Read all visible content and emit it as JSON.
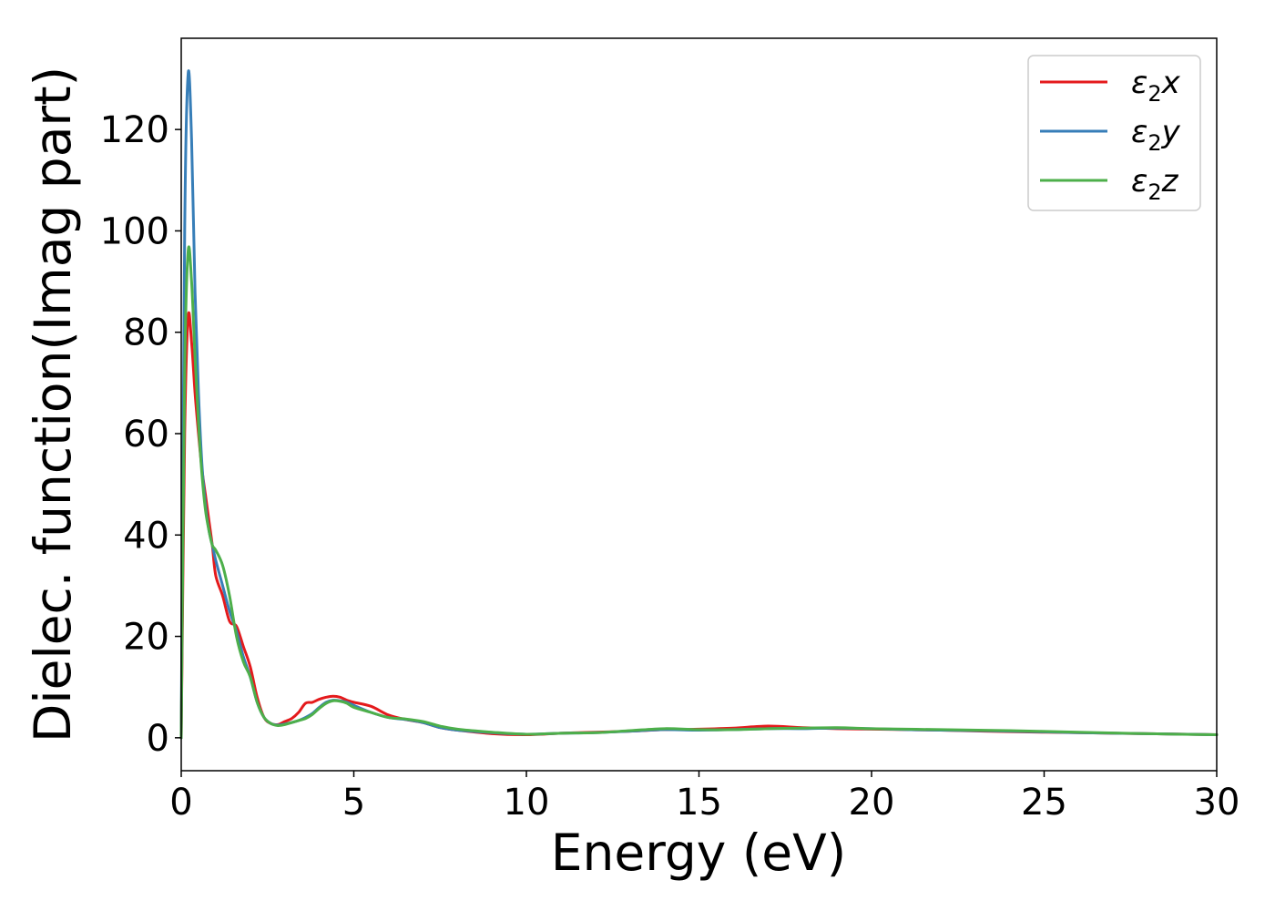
{
  "chart_data": {
    "type": "line",
    "title": "",
    "xlabel": "Energy (eV)",
    "ylabel": "Dielec. function(Imag part)",
    "xlim": [
      0,
      30
    ],
    "ylim": [
      -6.5,
      138
    ],
    "xticks": [
      0,
      5,
      10,
      15,
      20,
      25,
      30
    ],
    "yticks": [
      0,
      20,
      40,
      60,
      80,
      100,
      120
    ],
    "grid": false,
    "legend_position": "top-right",
    "series": [
      {
        "name": "ε2x",
        "legend_main": "ε",
        "legend_sub": "2",
        "legend_suffix": "x",
        "color": "#e41a1c",
        "x": [
          0,
          0.1,
          0.2,
          0.3,
          0.4,
          0.5,
          0.6,
          0.7,
          0.8,
          0.9,
          1.0,
          1.2,
          1.4,
          1.6,
          1.8,
          2.0,
          2.2,
          2.4,
          2.6,
          2.8,
          3.0,
          3.2,
          3.4,
          3.6,
          3.8,
          4.0,
          4.2,
          4.4,
          4.6,
          4.8,
          5.0,
          5.5,
          6.0,
          6.5,
          7.0,
          7.5,
          8.0,
          9.0,
          10.0,
          11.0,
          12.0,
          13.0,
          14.0,
          15.0,
          16.0,
          17.0,
          18.0,
          19.0,
          20.0,
          21.0,
          22.0,
          24.0,
          26.0,
          28.0,
          30.0
        ],
        "y": [
          0,
          60,
          83,
          78,
          68,
          60,
          53,
          48,
          43,
          38,
          32,
          28,
          23,
          22,
          18,
          14,
          8,
          4,
          2.8,
          2.6,
          3.2,
          3.8,
          5.0,
          6.8,
          7.0,
          7.6,
          8.0,
          8.2,
          8.0,
          7.4,
          7.0,
          6.2,
          4.5,
          3.6,
          3.0,
          2.0,
          1.5,
          0.8,
          0.6,
          0.9,
          1.1,
          1.3,
          1.6,
          1.7,
          1.9,
          2.3,
          2.0,
          1.8,
          1.7,
          1.6,
          1.5,
          1.2,
          1.0,
          0.8,
          0.6
        ]
      },
      {
        "name": "ε2y",
        "legend_main": "ε",
        "legend_sub": "2",
        "legend_suffix": "y",
        "color": "#377eb8",
        "x": [
          0,
          0.1,
          0.2,
          0.3,
          0.4,
          0.5,
          0.6,
          0.7,
          0.8,
          0.9,
          1.0,
          1.2,
          1.4,
          1.6,
          1.8,
          2.0,
          2.2,
          2.4,
          2.6,
          2.8,
          3.0,
          3.2,
          3.4,
          3.6,
          3.8,
          4.0,
          4.2,
          4.4,
          4.6,
          4.8,
          5.0,
          5.5,
          6.0,
          6.5,
          7.0,
          7.5,
          8.0,
          9.0,
          10.0,
          11.0,
          12.0,
          13.0,
          14.0,
          15.0,
          16.0,
          17.0,
          18.0,
          19.0,
          20.0,
          21.0,
          22.0,
          24.0,
          26.0,
          28.0,
          30.0
        ],
        "y": [
          0,
          100,
          131,
          118,
          88,
          68,
          54,
          46,
          41,
          38,
          35,
          30,
          25,
          21,
          16,
          12,
          7,
          4,
          2.8,
          2.5,
          2.7,
          3.0,
          3.4,
          4.0,
          4.8,
          6.0,
          7.0,
          7.4,
          7.3,
          7.0,
          6.4,
          5.0,
          4.0,
          3.6,
          3.0,
          2.0,
          1.5,
          1.0,
          0.7,
          0.9,
          1.0,
          1.3,
          1.6,
          1.5,
          1.6,
          1.8,
          1.8,
          1.9,
          1.8,
          1.6,
          1.5,
          1.3,
          1.0,
          0.8,
          0.6
        ]
      },
      {
        "name": "ε2z",
        "legend_main": "ε",
        "legend_sub": "2",
        "legend_suffix": "z",
        "color": "#4daf4a",
        "x": [
          0,
          0.1,
          0.2,
          0.3,
          0.4,
          0.5,
          0.6,
          0.7,
          0.8,
          0.9,
          1.0,
          1.2,
          1.4,
          1.6,
          1.8,
          2.0,
          2.2,
          2.4,
          2.6,
          2.8,
          3.0,
          3.2,
          3.4,
          3.6,
          3.8,
          4.0,
          4.2,
          4.4,
          4.6,
          4.8,
          5.0,
          5.5,
          6.0,
          6.5,
          7.0,
          7.5,
          8.0,
          9.0,
          10.0,
          11.0,
          12.0,
          13.0,
          14.0,
          15.0,
          16.0,
          17.0,
          18.0,
          19.0,
          20.0,
          21.0,
          22.0,
          24.0,
          26.0,
          28.0,
          30.0
        ],
        "y": [
          0,
          72,
          96,
          90,
          75,
          62,
          52,
          45,
          41,
          38,
          37,
          34,
          28,
          20,
          15,
          12,
          7,
          4,
          2.8,
          2.4,
          2.6,
          3.0,
          3.4,
          3.8,
          4.6,
          5.8,
          6.8,
          7.3,
          7.2,
          6.8,
          6.0,
          5.0,
          4.0,
          3.7,
          3.2,
          2.3,
          1.7,
          1.1,
          0.7,
          0.9,
          1.0,
          1.4,
          1.8,
          1.6,
          1.6,
          1.8,
          1.9,
          2.0,
          1.8,
          1.7,
          1.6,
          1.4,
          1.1,
          0.8,
          0.6
        ]
      }
    ]
  }
}
